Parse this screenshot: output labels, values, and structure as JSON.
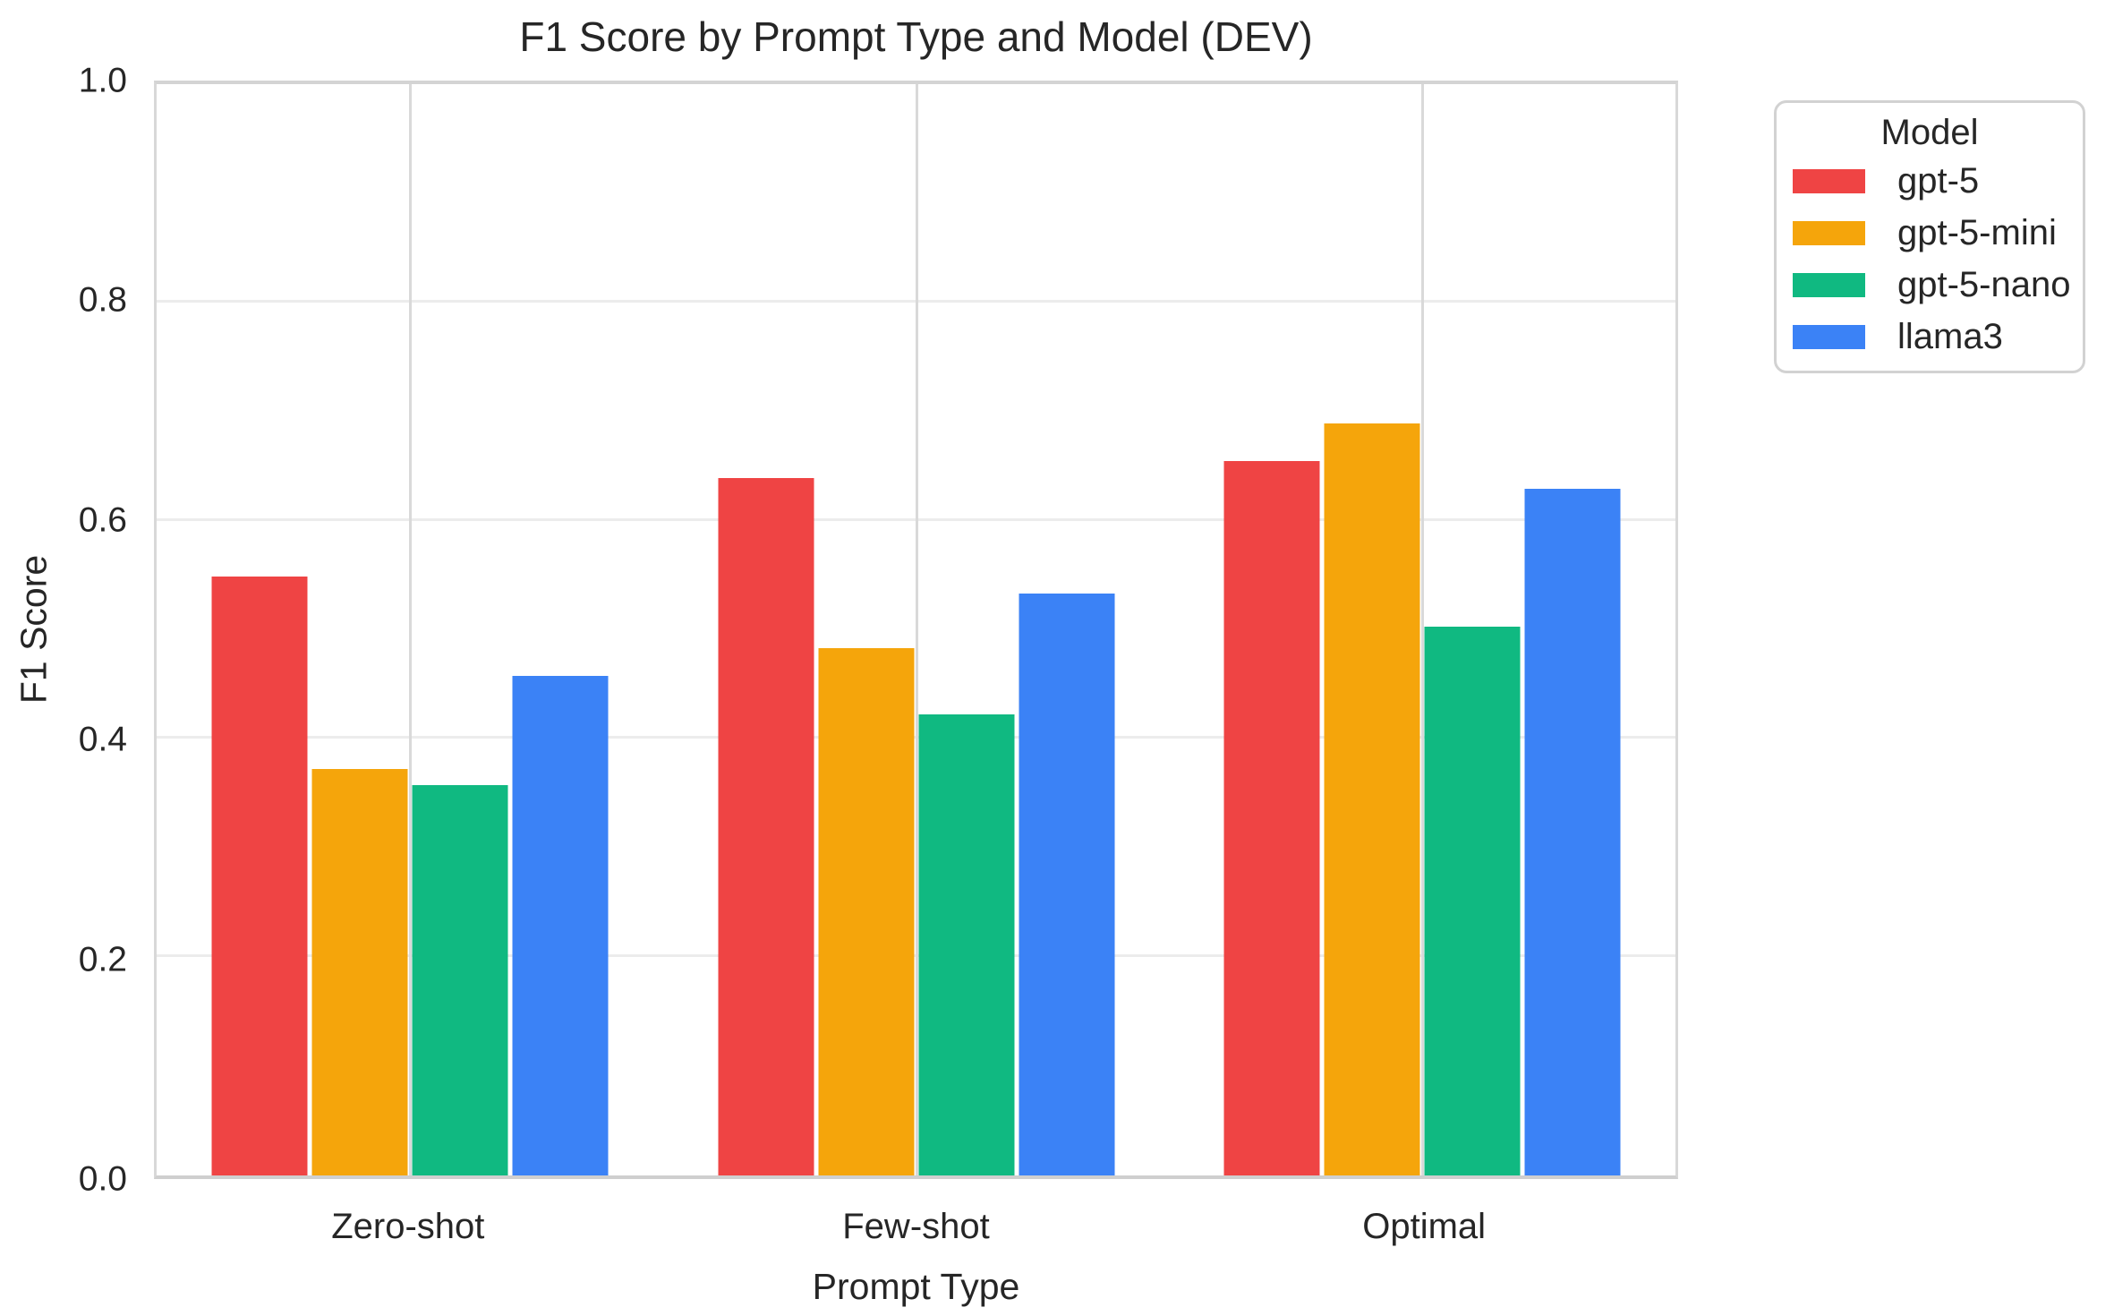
{
  "chart": {
    "title": "F1 Score by Prompt Type and Model (DEV)",
    "xlabel": "Prompt Type",
    "ylabel": "F1 Score",
    "legend_title": "Model"
  },
  "chart_data": {
    "type": "bar",
    "title": "F1 Score by Prompt Type and Model (DEV)",
    "xlabel": "Prompt Type",
    "ylabel": "F1 Score",
    "categories": [
      "Zero-shot",
      "Few-shot",
      "Optimal"
    ],
    "series": [
      {
        "name": "gpt-5",
        "color": "#EF4444",
        "values": [
          0.545,
          0.635,
          0.65
        ]
      },
      {
        "name": "gpt-5-mini",
        "color": "#F5A50B",
        "values": [
          0.37,
          0.48,
          0.685
        ]
      },
      {
        "name": "gpt-5-nano",
        "color": "#10B981",
        "values": [
          0.355,
          0.42,
          0.5
        ]
      },
      {
        "name": "llama3",
        "color": "#3B82F6",
        "values": [
          0.455,
          0.53,
          0.625
        ]
      }
    ],
    "ylim": [
      0.0,
      1.0
    ],
    "yticks": [
      0.0,
      0.2,
      0.4,
      0.6,
      0.8,
      1.0
    ],
    "grid": true,
    "legend": {
      "title": "Model",
      "position": "outside-upper-right"
    }
  },
  "colors": {
    "text": "#262626",
    "grid_horizontal": "#ececec",
    "grid_vertical": "#d9d9d9",
    "spine": "#d4d4d4",
    "background": "#ffffff"
  }
}
